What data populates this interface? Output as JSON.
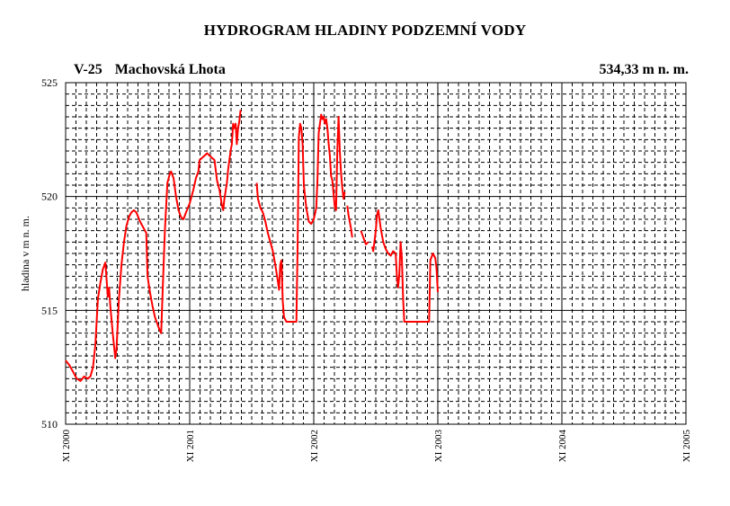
{
  "header": {
    "title": "HYDROGRAM HLADINY PODZEMNÍ VODY",
    "station_code": "V-25",
    "station_name": "Machovská Lhota",
    "elevation": "534,33 m n. m."
  },
  "colors": {
    "series": "#ff0000",
    "grid": "#000000",
    "background": "#ffffff"
  },
  "chart_data": {
    "type": "line",
    "title": "HYDROGRAM HLADINY PODZEMNÍ VODY",
    "ylabel": "hladina v m n. m.",
    "xlabel": "",
    "ylim": [
      510,
      525
    ],
    "yticks": [
      510,
      515,
      520,
      525
    ],
    "yticklabels": [
      "510",
      "515",
      "520",
      "525"
    ],
    "xlim": [
      2000.0,
      2005.0
    ],
    "xticks": [
      2000,
      2001,
      2002,
      2003,
      2004,
      2005
    ],
    "xticklabels": [
      "XI 2000",
      "XI 2001",
      "XI 2002",
      "XI 2003",
      "XI 2004",
      "XI 2005"
    ],
    "x_unit": "years since XI 2000",
    "grid": true,
    "series": [
      {
        "segments": [
          [
            [
              2000.0,
              512.8
            ],
            [
              2000.03,
              512.6
            ],
            [
              2000.06,
              512.3
            ],
            [
              2000.09,
              512.0
            ],
            [
              2000.12,
              511.9
            ],
            [
              2000.15,
              512.1
            ],
            [
              2000.18,
              512.0
            ],
            [
              2000.2,
              512.1
            ],
            [
              2000.22,
              512.5
            ],
            [
              2000.24,
              513.5
            ],
            [
              2000.26,
              515.5
            ],
            [
              2000.28,
              516.2
            ],
            [
              2000.3,
              516.8
            ],
            [
              2000.32,
              517.1
            ],
            [
              2000.33,
              516.4
            ],
            [
              2000.34,
              515.6
            ],
            [
              2000.35,
              516.0
            ],
            [
              2000.36,
              515.2
            ],
            [
              2000.38,
              514.0
            ],
            [
              2000.4,
              512.9
            ],
            [
              2000.41,
              513.3
            ],
            [
              2000.43,
              515.5
            ],
            [
              2000.45,
              517.0
            ],
            [
              2000.47,
              518.0
            ],
            [
              2000.49,
              518.7
            ],
            [
              2000.51,
              519.1
            ],
            [
              2000.53,
              519.3
            ],
            [
              2000.55,
              519.4
            ],
            [
              2000.57,
              519.3
            ],
            [
              2000.6,
              518.9
            ],
            [
              2000.63,
              518.6
            ],
            [
              2000.65,
              518.4
            ],
            [
              2000.66,
              516.5
            ],
            [
              2000.68,
              515.8
            ],
            [
              2000.7,
              515.2
            ],
            [
              2000.72,
              514.7
            ],
            [
              2000.74,
              514.4
            ],
            [
              2000.76,
              514.1
            ],
            [
              2000.77,
              514.0
            ],
            [
              2000.78,
              515.5
            ],
            [
              2000.8,
              518.5
            ],
            [
              2000.82,
              520.6
            ],
            [
              2000.84,
              521.0
            ],
            [
              2000.85,
              521.1
            ],
            [
              2000.87,
              520.8
            ],
            [
              2000.89,
              520.0
            ],
            [
              2000.91,
              519.4
            ],
            [
              2000.93,
              519.1
            ],
            [
              2000.95,
              519.0
            ],
            [
              2000.97,
              519.3
            ],
            [
              2001.0,
              519.7
            ],
            [
              2001.03,
              520.3
            ],
            [
              2001.05,
              520.8
            ],
            [
              2001.07,
              521.1
            ],
            [
              2001.08,
              521.6
            ],
            [
              2001.1,
              521.7
            ],
            [
              2001.12,
              521.8
            ],
            [
              2001.14,
              521.9
            ],
            [
              2001.16,
              521.8
            ],
            [
              2001.18,
              521.7
            ],
            [
              2001.2,
              521.6
            ],
            [
              2001.22,
              520.7
            ],
            [
              2001.24,
              520.3
            ],
            [
              2001.26,
              519.6
            ],
            [
              2001.27,
              519.4
            ],
            [
              2001.28,
              519.9
            ],
            [
              2001.3,
              520.6
            ],
            [
              2001.31,
              521.2
            ],
            [
              2001.33,
              522.0
            ],
            [
              2001.34,
              522.3
            ],
            [
              2001.35,
              523.2
            ],
            [
              2001.36,
              523.0
            ],
            [
              2001.37,
              523.2
            ],
            [
              2001.38,
              522.3
            ],
            [
              2001.39,
              523.0
            ],
            [
              2001.4,
              523.3
            ],
            [
              2001.41,
              523.8
            ]
          ],
          [
            [
              2001.54,
              520.6
            ],
            [
              2001.55,
              519.9
            ],
            [
              2001.57,
              519.5
            ],
            [
              2001.59,
              519.3
            ],
            [
              2001.61,
              518.9
            ],
            [
              2001.63,
              518.4
            ],
            [
              2001.65,
              518.0
            ],
            [
              2001.67,
              517.6
            ],
            [
              2001.69,
              517.0
            ],
            [
              2001.71,
              516.3
            ],
            [
              2001.72,
              515.9
            ],
            [
              2001.73,
              517.0
            ],
            [
              2001.74,
              517.2
            ],
            [
              2001.75,
              515.4
            ],
            [
              2001.76,
              514.7
            ],
            [
              2001.78,
              514.5
            ],
            [
              2001.82,
              514.5
            ],
            [
              2001.86,
              514.5
            ],
            [
              2001.87,
              518.0
            ],
            [
              2001.88,
              522.6
            ],
            [
              2001.89,
              523.2
            ],
            [
              2001.9,
              523.0
            ],
            [
              2001.91,
              522.3
            ],
            [
              2001.92,
              520.5
            ],
            [
              2001.94,
              519.5
            ],
            [
              2001.96,
              518.9
            ],
            [
              2001.98,
              518.8
            ],
            [
              2002.0,
              519.0
            ],
            [
              2002.02,
              519.5
            ],
            [
              2002.03,
              520.7
            ],
            [
              2002.04,
              522.8
            ],
            [
              2002.05,
              523.2
            ],
            [
              2002.06,
              523.6
            ],
            [
              2002.07,
              523.4
            ],
            [
              2002.08,
              523.5
            ],
            [
              2002.09,
              523.2
            ],
            [
              2002.1,
              523.4
            ],
            [
              2002.11,
              523.0
            ],
            [
              2002.12,
              522.3
            ],
            [
              2002.13,
              521.8
            ],
            [
              2002.14,
              520.9
            ],
            [
              2002.15,
              520.7
            ],
            [
              2002.16,
              520.1
            ],
            [
              2002.17,
              519.5
            ],
            [
              2002.18,
              519.4
            ],
            [
              2002.19,
              522.0
            ],
            [
              2002.2,
              523.5
            ],
            [
              2002.21,
              522.0
            ],
            [
              2002.22,
              521.0
            ],
            [
              2002.23,
              520.4
            ],
            [
              2002.24,
              519.9
            ],
            [
              2002.25,
              520.2
            ]
          ],
          [
            [
              2002.27,
              519.6
            ],
            [
              2002.28,
              519.2
            ],
            [
              2002.3,
              518.6
            ],
            [
              2002.31,
              518.2
            ]
          ],
          [
            [
              2002.38,
              518.5
            ],
            [
              2002.4,
              518.2
            ],
            [
              2002.42,
              517.9
            ],
            [
              2002.44,
              518.0
            ]
          ],
          [
            [
              2002.47,
              517.8
            ],
            [
              2002.48,
              517.6
            ],
            [
              2002.5,
              518.5
            ],
            [
              2002.51,
              519.2
            ],
            [
              2002.52,
              519.4
            ],
            [
              2002.54,
              518.6
            ],
            [
              2002.56,
              518.0
            ],
            [
              2002.58,
              517.7
            ],
            [
              2002.6,
              517.5
            ],
            [
              2002.62,
              517.4
            ],
            [
              2002.64,
              517.6
            ],
            [
              2002.66,
              517.5
            ],
            [
              2002.67,
              516.5
            ],
            [
              2002.68,
              516.0
            ],
            [
              2002.69,
              516.6
            ],
            [
              2002.7,
              518.0
            ],
            [
              2002.71,
              517.3
            ],
            [
              2002.72,
              515.5
            ],
            [
              2002.73,
              514.5
            ],
            [
              2002.8,
              514.5
            ],
            [
              2002.88,
              514.5
            ],
            [
              2002.93,
              514.5
            ],
            [
              2002.94,
              517.2
            ],
            [
              2002.96,
              517.5
            ],
            [
              2002.98,
              517.3
            ],
            [
              2002.99,
              516.8
            ],
            [
              2003.0,
              515.8
            ]
          ]
        ]
      }
    ]
  }
}
